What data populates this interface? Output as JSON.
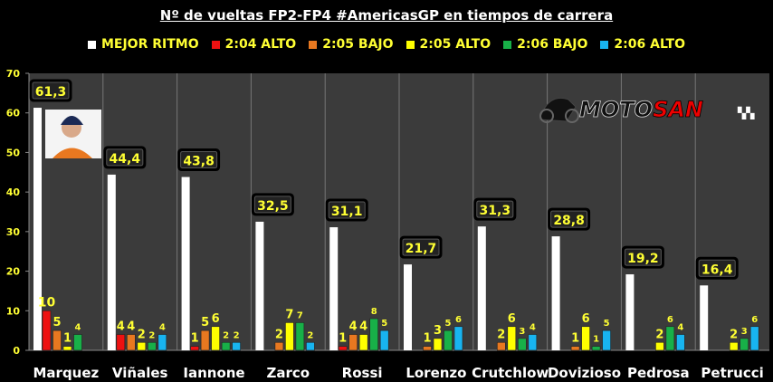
{
  "chart_data": {
    "type": "bar",
    "title": "Nº de vueltas FP2-FP4 #AmericasGP en tiempos de carrera",
    "xlabel": "",
    "ylabel": "",
    "ylim": [
      0,
      70
    ],
    "yticks": [
      "0",
      "10",
      "20",
      "30",
      "40",
      "50",
      "60",
      "70"
    ],
    "legend_position": "top",
    "categories": [
      "Marquez",
      "Viñales",
      "Iannone",
      "Zarco",
      "Rossi",
      "Lorenzo",
      "Crutchlow",
      "Dovizioso",
      "Pedrosa",
      "Petrucci"
    ],
    "series": [
      {
        "name": "MEJOR RITMO",
        "color": "#ffffff",
        "values": [
          61.3,
          44.4,
          43.8,
          32.5,
          31.1,
          21.7,
          31.3,
          28.8,
          19.2,
          16.4
        ],
        "labels": [
          "61,3",
          "44,4",
          "43,8",
          "32,5",
          "31,1",
          "21,7",
          "31,3",
          "28,8",
          "19,2",
          "16,4"
        ]
      },
      {
        "name": "2:04 ALTO",
        "color": "#ee1111",
        "values": [
          10,
          4,
          1,
          0,
          1,
          0,
          0,
          0,
          0,
          0
        ]
      },
      {
        "name": "2:05 BAJO",
        "color": "#e87820",
        "values": [
          5,
          4,
          5,
          2,
          4,
          1,
          2,
          1,
          0,
          0
        ]
      },
      {
        "name": "2:05 ALTO",
        "color": "#ffff00",
        "values": [
          1,
          2,
          6,
          7,
          4,
          3,
          6,
          6,
          2,
          2
        ]
      },
      {
        "name": "2:06 BAJO",
        "color": "#18b048",
        "values": [
          4,
          2,
          2,
          7,
          8,
          5,
          3,
          1,
          6,
          3
        ]
      },
      {
        "name": "2:06 ALTO",
        "color": "#18b4f0",
        "values": [
          0,
          4,
          2,
          2,
          5,
          6,
          4,
          5,
          4,
          6
        ]
      }
    ]
  },
  "logo": "MOTOSAN"
}
